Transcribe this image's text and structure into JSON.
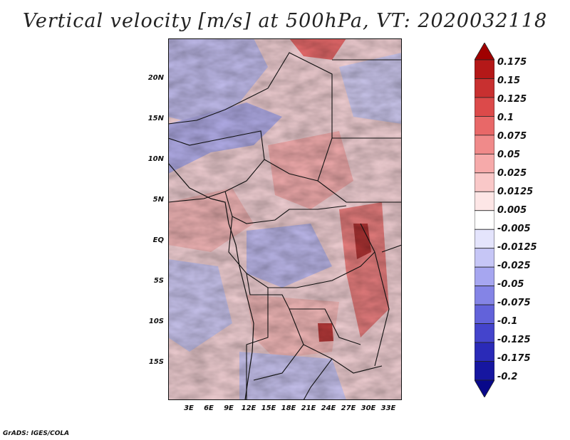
{
  "title": "Vertical velocity [m/s] at 500hPa, VT: 2020032118",
  "credit": "GrADS: IGES/COLA",
  "map": {
    "lat_labels": [
      "20N",
      "15N",
      "10N",
      "5N",
      "EQ",
      "5S",
      "10S",
      "15S"
    ],
    "lon_labels": [
      "3E",
      "6E",
      "9E",
      "12E",
      "15E",
      "18E",
      "21E",
      "24E",
      "27E",
      "30E",
      "33E"
    ],
    "lat_range": [
      -20,
      25
    ],
    "lon_range": [
      0,
      35
    ]
  },
  "colorbar": {
    "labels": [
      "0.175",
      "0.15",
      "0.125",
      "0.1",
      "0.075",
      "0.05",
      "0.025",
      "0.0125",
      "0.005",
      "-0.005",
      "-0.0125",
      "-0.025",
      "-0.05",
      "-0.075",
      "-0.1",
      "-0.125",
      "-0.175",
      "-0.2"
    ],
    "colors": [
      "#a00000",
      "#b41818",
      "#c83030",
      "#dc4a4a",
      "#e86868",
      "#f08a8a",
      "#f6aaaa",
      "#f9c8c8",
      "#fde6e6",
      "#ffffff",
      "#e4e4fc",
      "#c6c6f6",
      "#a6a6f0",
      "#8484e6",
      "#6262da",
      "#4444cc",
      "#2a2ab8",
      "#1616a0",
      "#08088a"
    ]
  }
}
